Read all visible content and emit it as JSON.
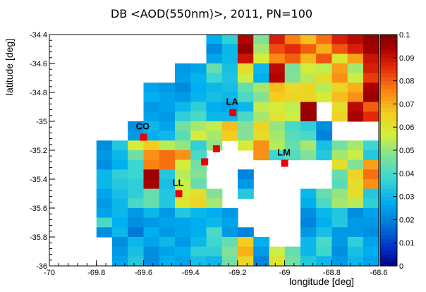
{
  "chart_data": {
    "type": "heatmap",
    "title": "DB <AOD(550nm)>, 2011, PN=100",
    "xlabel": "longitude [deg]",
    "ylabel": "latitude [deg]",
    "xlim": [
      -70,
      -68.6
    ],
    "ylim": [
      -36,
      -34.4
    ],
    "x_ticks": [
      "-70",
      "-69.8",
      "-69.6",
      "-69.4",
      "-69.2",
      "-69",
      "-68.8",
      "-68.6"
    ],
    "y_ticks": [
      "-34.4",
      "-34.6",
      "-34.8",
      "-35",
      "-35.2",
      "-35.4",
      "-35.6",
      "-35.8",
      "-36"
    ],
    "colorbar": {
      "range": [
        0,
        0.1
      ],
      "ticks": [
        "0",
        "0.01",
        "0.02",
        "0.03",
        "0.04",
        "0.05",
        "0.06",
        "0.07",
        "0.08",
        "0.09",
        "0.1"
      ]
    },
    "grid": {
      "x_start": -70,
      "y_start": -36,
      "cell_size": 0.0667,
      "nx": 21,
      "ny": 24,
      "rows_top_to_bottom": [
        [
          null,
          null,
          null,
          null,
          null,
          null,
          null,
          null,
          null,
          null,
          0.028,
          0.036,
          0.093,
          0.048,
          0.088,
          0.076,
          0.068,
          0.078,
          0.088,
          0.092,
          0.097
        ],
        [
          null,
          null,
          null,
          null,
          null,
          null,
          null,
          null,
          null,
          null,
          0.021,
          0.03,
          0.097,
          0.052,
          0.082,
          0.086,
          0.08,
          0.07,
          0.081,
          0.088,
          0.095
        ],
        [
          null,
          null,
          null,
          null,
          null,
          null,
          null,
          null,
          null,
          null,
          0.026,
          0.03,
          0.09,
          0.058,
          0.075,
          0.08,
          0.069,
          0.081,
          0.06,
          0.072,
          0.09
        ],
        [
          null,
          null,
          null,
          null,
          null,
          null,
          null,
          null,
          0.024,
          0.026,
          0.044,
          0.032,
          0.062,
          0.03,
          0.092,
          0.047,
          0.058,
          0.055,
          0.072,
          0.052,
          0.088
        ],
        [
          null,
          null,
          null,
          null,
          null,
          null,
          null,
          null,
          0.025,
          0.029,
          0.038,
          0.033,
          0.056,
          0.028,
          0.093,
          0.048,
          0.054,
          0.062,
          0.074,
          0.056,
          0.084
        ],
        [
          null,
          null,
          null,
          null,
          null,
          null,
          0.026,
          0.024,
          0.021,
          0.028,
          0.03,
          0.032,
          0.044,
          0.052,
          0.068,
          0.063,
          0.064,
          0.054,
          0.064,
          0.07,
          0.094
        ],
        [
          null,
          null,
          null,
          null,
          null,
          null,
          0.028,
          0.026,
          0.024,
          0.029,
          0.032,
          0.03,
          0.04,
          0.048,
          0.066,
          0.064,
          0.064,
          0.058,
          0.068,
          0.074,
          0.096
        ],
        [
          null,
          null,
          null,
          null,
          null,
          null,
          0.024,
          0.026,
          0.03,
          0.036,
          0.028,
          0.026,
          0.03,
          0.055,
          0.058,
          0.055,
          0.096,
          null,
          0.062,
          0.092,
          0.08
        ],
        [
          null,
          null,
          null,
          null,
          null,
          null,
          0.026,
          0.024,
          0.036,
          0.04,
          0.03,
          0.03,
          0.04,
          0.052,
          0.06,
          0.056,
          0.097,
          null,
          0.064,
          0.094,
          0.086
        ],
        [
          null,
          null,
          null,
          null,
          null,
          0.022,
          0.03,
          0.026,
          0.046,
          0.052,
          0.055,
          0.068,
          0.048,
          0.064,
          0.05,
          0.04,
          0.036,
          0.022,
          null,
          null,
          null
        ],
        [
          null,
          null,
          null,
          null,
          null,
          0.024,
          0.028,
          0.03,
          0.042,
          0.058,
          0.052,
          0.066,
          0.048,
          0.062,
          0.052,
          0.042,
          0.04,
          0.02,
          null,
          null,
          null
        ],
        [
          null,
          null,
          null,
          0.022,
          0.034,
          0.058,
          0.066,
          0.054,
          0.05,
          0.036,
          0.05,
          null,
          0.058,
          0.074,
          0.054,
          0.044,
          0.052,
          0.032,
          0.046,
          0.052,
          0.038
        ],
        [
          null,
          null,
          null,
          0.024,
          0.03,
          0.046,
          0.074,
          0.078,
          0.074,
          0.04,
          null,
          null,
          null,
          0.074,
          0.038,
          0.042,
          0.048,
          0.034,
          0.052,
          0.056,
          0.034
        ],
        [
          null,
          null,
          null,
          0.022,
          0.028,
          0.038,
          0.076,
          0.078,
          0.058,
          0.046,
          null,
          null,
          null,
          null,
          null,
          null,
          null,
          null,
          0.062,
          0.048,
          0.072
        ],
        [
          null,
          null,
          null,
          0.03,
          0.036,
          0.038,
          0.096,
          0.034,
          0.054,
          0.048,
          null,
          null,
          0.02,
          null,
          null,
          null,
          null,
          null,
          0.044,
          0.064,
          0.078
        ],
        [
          null,
          null,
          null,
          0.03,
          0.034,
          0.036,
          0.094,
          0.032,
          0.056,
          0.044,
          null,
          null,
          0.024,
          null,
          null,
          null,
          null,
          null,
          0.042,
          0.062,
          0.074
        ],
        [
          null,
          null,
          null,
          0.026,
          0.032,
          0.036,
          0.044,
          0.034,
          0.058,
          0.062,
          0.048,
          null,
          0.034,
          null,
          null,
          null,
          0.03,
          0.044,
          0.05,
          0.062,
          0.034
        ],
        [
          null,
          null,
          null,
          0.024,
          0.03,
          0.04,
          0.044,
          0.034,
          0.06,
          0.064,
          0.052,
          null,
          null,
          null,
          null,
          null,
          0.028,
          0.04,
          0.052,
          0.054,
          0.036
        ],
        [
          null,
          null,
          null,
          0.026,
          0.03,
          0.024,
          0.03,
          0.024,
          0.034,
          0.03,
          0.028,
          0.024,
          null,
          null,
          null,
          null,
          0.022,
          0.03,
          0.034,
          0.022,
          0.026
        ],
        [
          null,
          null,
          null,
          0.04,
          0.028,
          0.022,
          0.024,
          0.026,
          0.026,
          0.028,
          0.03,
          0.026,
          null,
          null,
          null,
          null,
          0.02,
          0.028,
          0.034,
          0.024,
          0.024
        ],
        [
          null,
          null,
          null,
          0.022,
          0.03,
          0.018,
          0.028,
          0.024,
          0.026,
          0.028,
          0.04,
          0.024,
          0.02,
          null,
          null,
          null,
          0.024,
          0.032,
          0.024,
          0.024,
          0.022
        ],
        [
          null,
          null,
          null,
          null,
          0.022,
          0.03,
          0.026,
          0.03,
          0.024,
          0.03,
          0.038,
          0.044,
          0.066,
          0.028,
          null,
          null,
          0.03,
          0.04,
          0.024,
          0.036,
          0.026
        ],
        [
          null,
          null,
          null,
          null,
          0.024,
          0.032,
          0.022,
          0.026,
          0.028,
          0.036,
          0.036,
          0.048,
          0.07,
          0.024,
          0.056,
          0.044,
          0.03,
          0.038,
          0.022,
          0.032,
          0.028
        ],
        [
          null,
          null,
          null,
          null,
          0.026,
          0.034,
          0.022,
          0.028,
          0.026,
          0.032,
          0.03,
          0.046,
          0.064,
          0.02,
          0.06,
          0.046,
          0.034,
          0.03,
          0.024,
          0.03,
          0.026
        ]
      ]
    },
    "sites": [
      {
        "label": "LA",
        "lon": -69.22,
        "lat": -34.94
      },
      {
        "label": "CO",
        "lon": -69.6,
        "lat": -35.11
      },
      {
        "label": "LM",
        "lon": -69.0,
        "lat": -35.29
      },
      {
        "label": "LL",
        "lon": -69.45,
        "lat": -35.5
      },
      {
        "label": "",
        "lon": -69.29,
        "lat": -35.19
      },
      {
        "label": "",
        "lon": -69.34,
        "lat": -35.28
      }
    ]
  }
}
